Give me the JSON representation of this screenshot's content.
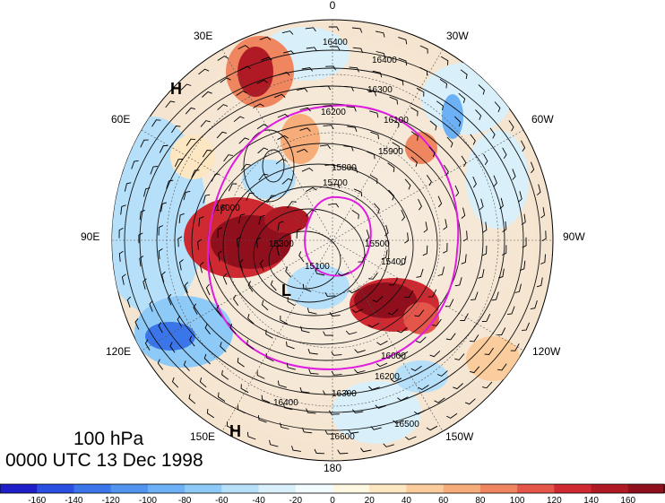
{
  "map": {
    "projection": "polar-stereographic-north",
    "longitude_labels": {
      "top": "0",
      "bottom": "180",
      "left": "90E",
      "right": "90W",
      "upper_left_1": "30E",
      "upper_left_2": "60E",
      "lower_left_1": "120E",
      "lower_left_2": "150E",
      "upper_right_1": "30W",
      "upper_right_2": "60W",
      "lower_right_1": "120W",
      "lower_right_2": "150W"
    },
    "pressure_centers": [
      {
        "label": "H",
        "where": "upper-left, near 45E"
      },
      {
        "label": "L",
        "where": "center-left, polar vortex"
      },
      {
        "label": "H",
        "where": "lower-left, near 160E"
      }
    ],
    "height_contour_labels": [
      "16400",
      "16400",
      "16300",
      "16200",
      "16100",
      "16000",
      "15900",
      "15800",
      "15700",
      "15500",
      "15400",
      "15300",
      "15100",
      "16400",
      "16500",
      "16600",
      "16300",
      "16200",
      "16000"
    ],
    "fields": {
      "filled": "temperature/height anomaly (shaded)",
      "contours": "geopotential height",
      "barbs": "wind barbs",
      "magenta_contours": "PV / jet isotachs"
    }
  },
  "caption": {
    "level": "100 hPa",
    "time": "0000 UTC 13 Dec 1998"
  },
  "colorbar": {
    "tick_labels": [
      "-160",
      "-140",
      "-120",
      "-100",
      "-80",
      "-60",
      "-40",
      "-20",
      "0",
      "20",
      "40",
      "60",
      "80",
      "100",
      "120",
      "140",
      "160"
    ],
    "colors": [
      "#1f1fc8",
      "#2b4fe0",
      "#3a75ea",
      "#4f95f0",
      "#6cb1f5",
      "#8ecaf7",
      "#b6e0f9",
      "#d9f0fb",
      "#f2fbff",
      "#fff8e0",
      "#fde6c2",
      "#fbcd9c",
      "#f6ad7a",
      "#ef8660",
      "#e4564a",
      "#cf2a32",
      "#b01a24",
      "#8f0f1c"
    ]
  }
}
